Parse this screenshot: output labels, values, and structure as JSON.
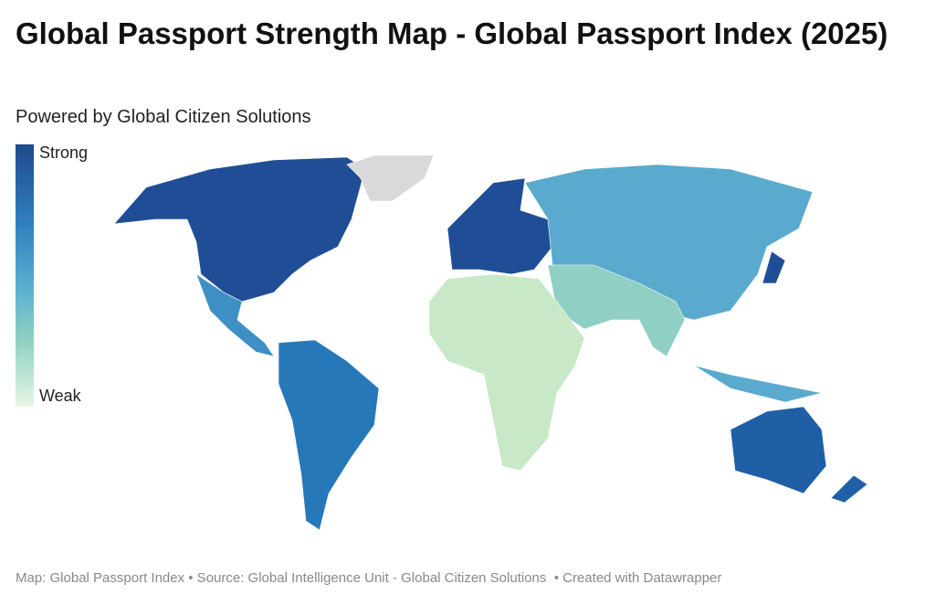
{
  "header": {
    "title": "Global Passport Strength Map - Global Passport Index (2025)",
    "subtitle": "Powered by Global Citizen Solutions"
  },
  "legend": {
    "high": "Strong",
    "low": "Weak"
  },
  "footer": "Map: Global Passport Index • Source: Global Intelligence Unit - Global Citizen Solutions  • Created with Datawrapper"
}
